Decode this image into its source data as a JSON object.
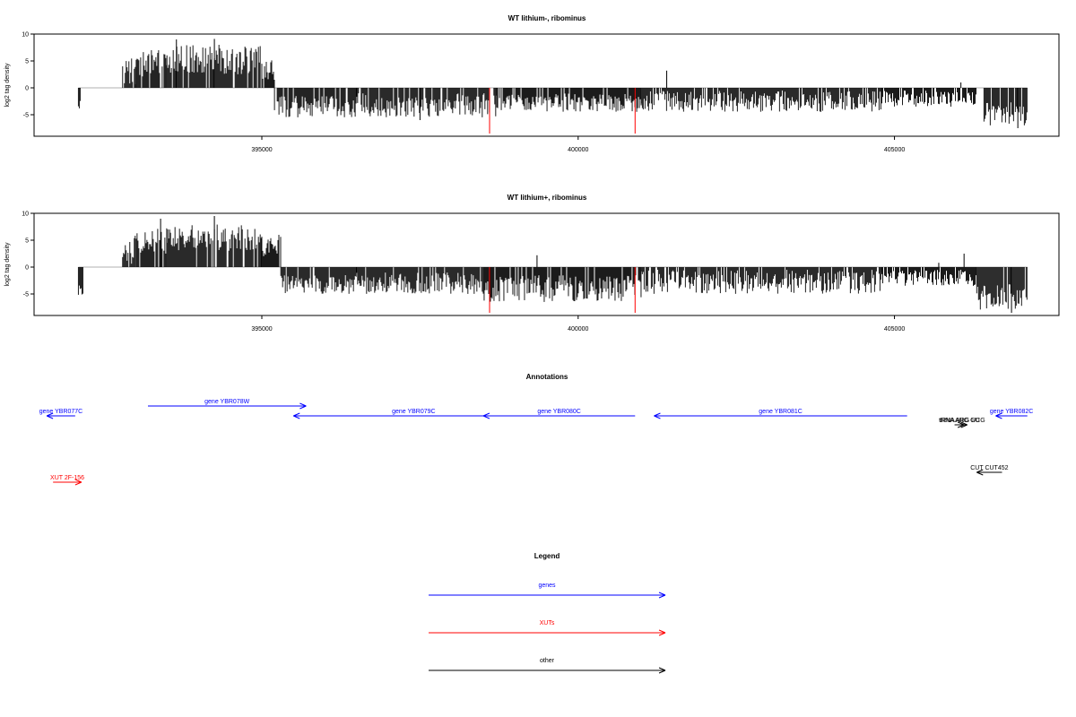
{
  "colors": {
    "genes": "#0000ff",
    "xuts": "#ff0000",
    "other": "#000000",
    "signal": "#000000",
    "marker": "#ff0000"
  },
  "chart_data": [
    {
      "type": "bar",
      "title": "WT lithium-, ribominus",
      "ylabel": "log2 tag density",
      "xlim": [
        391400,
        407600
      ],
      "ylim": [
        -9,
        10
      ],
      "yticks": [
        -5,
        0,
        5,
        10
      ],
      "xticks": [
        395000,
        400000,
        405000
      ],
      "grid": false,
      "segments": [
        {
          "from": 392100,
          "to": 392150,
          "low": -4.2,
          "high": -2.0
        },
        {
          "from": 392800,
          "to": 393000,
          "low": 0.5,
          "high": 5.5
        },
        {
          "from": 393000,
          "to": 393500,
          "low": 2.0,
          "high": 7.0
        },
        {
          "from": 393500,
          "to": 395000,
          "low": 2.5,
          "high": 8.0
        },
        {
          "from": 395000,
          "to": 395200,
          "low": 1.5,
          "high": 5.5
        },
        {
          "from": 395200,
          "to": 396500,
          "low": -5.5,
          "high": -1.5
        },
        {
          "from": 396500,
          "to": 398700,
          "low": -5.5,
          "high": -1.0
        },
        {
          "from": 398700,
          "to": 401000,
          "low": -4.5,
          "high": -1.0
        },
        {
          "from": 401000,
          "to": 404800,
          "low": -4.5,
          "high": -0.5
        },
        {
          "from": 404800,
          "to": 406300,
          "low": -3.5,
          "high": -0.5
        },
        {
          "from": 406400,
          "to": 407100,
          "low": -7.0,
          "high": -2.5
        }
      ],
      "spikes": [
        {
          "x": 393650,
          "y": 9.0
        },
        {
          "x": 394250,
          "y": 9.1
        },
        {
          "x": 401400,
          "y": 3.2
        },
        {
          "x": 406050,
          "y": 1.0
        },
        {
          "x": 397500,
          "y": -6.0
        },
        {
          "x": 406950,
          "y": -7.5
        }
      ],
      "markers": [
        398600,
        400900
      ],
      "marker_low": -8.5
    },
    {
      "type": "bar",
      "title": "WT lithium+, ribominus",
      "ylabel": "log2 tag density",
      "xlim": [
        391400,
        407600
      ],
      "ylim": [
        -9,
        10
      ],
      "yticks": [
        -5,
        0,
        5,
        10
      ],
      "xticks": [
        395000,
        400000,
        405000
      ],
      "grid": false,
      "segments": [
        {
          "from": 392100,
          "to": 392180,
          "low": -5.8,
          "high": -2.5
        },
        {
          "from": 392800,
          "to": 393000,
          "low": 0.5,
          "high": 6.0
        },
        {
          "from": 393000,
          "to": 393500,
          "low": 2.5,
          "high": 7.5
        },
        {
          "from": 393500,
          "to": 395000,
          "low": 3.0,
          "high": 8.0
        },
        {
          "from": 395000,
          "to": 395300,
          "low": 1.5,
          "high": 6.0
        },
        {
          "from": 395300,
          "to": 396500,
          "low": -5.0,
          "high": -1.5
        },
        {
          "from": 396500,
          "to": 398500,
          "low": -5.0,
          "high": -1.0
        },
        {
          "from": 398500,
          "to": 401000,
          "low": -6.5,
          "high": -1.5
        },
        {
          "from": 401000,
          "to": 404800,
          "low": -5.0,
          "high": -0.5
        },
        {
          "from": 404800,
          "to": 406300,
          "low": -3.5,
          "high": -0.5
        },
        {
          "from": 406300,
          "to": 407100,
          "low": -8.0,
          "high": -3.0
        }
      ],
      "spikes": [
        {
          "x": 393400,
          "y": 9.0
        },
        {
          "x": 394250,
          "y": 9.5
        },
        {
          "x": 399350,
          "y": 2.2
        },
        {
          "x": 406100,
          "y": 2.5
        },
        {
          "x": 405700,
          "y": 0.8
        },
        {
          "x": 406850,
          "y": -8.5
        }
      ],
      "markers": [
        398600,
        400900
      ],
      "marker_low": -8.5
    }
  ],
  "annotations": {
    "title": "Annotations",
    "features": [
      {
        "label": "gene YBR077C",
        "type": "genes",
        "from": 392050,
        "to": 391600,
        "row": 0
      },
      {
        "label": "gene YBR078W",
        "type": "genes",
        "from": 393200,
        "to": 395700,
        "row": -1
      },
      {
        "label": "gene YBR079C",
        "type": "genes",
        "from": 399300,
        "to": 395500,
        "row": 0
      },
      {
        "label": "gene YBR080C",
        "type": "genes",
        "from": 400900,
        "to": 398500,
        "row": 0
      },
      {
        "label": "gene YBR081C",
        "type": "genes",
        "from": 405200,
        "to": 401200,
        "row": 0
      },
      {
        "label": "gene YBR082C",
        "type": "genes",
        "from": 407100,
        "to": 406600,
        "row": 0
      },
      {
        "label": "tRNA ARG GU",
        "type": "other",
        "from": 405950,
        "to": 406100,
        "row": 1
      },
      {
        "label": "tRNA ARG UCG",
        "type": "other",
        "from": 406000,
        "to": 406150,
        "row": 1
      },
      {
        "label": "XUT 2F-156",
        "type": "xuts",
        "from": 391700,
        "to": 392150,
        "row": 3
      },
      {
        "label": "CUT CUT452",
        "type": "other",
        "from": 406700,
        "to": 406300,
        "row": 2
      }
    ]
  },
  "legend": {
    "title": "Legend",
    "items": [
      {
        "label": "genes",
        "type": "genes"
      },
      {
        "label": "XUTs",
        "type": "xuts"
      },
      {
        "label": "other",
        "type": "other"
      }
    ]
  }
}
